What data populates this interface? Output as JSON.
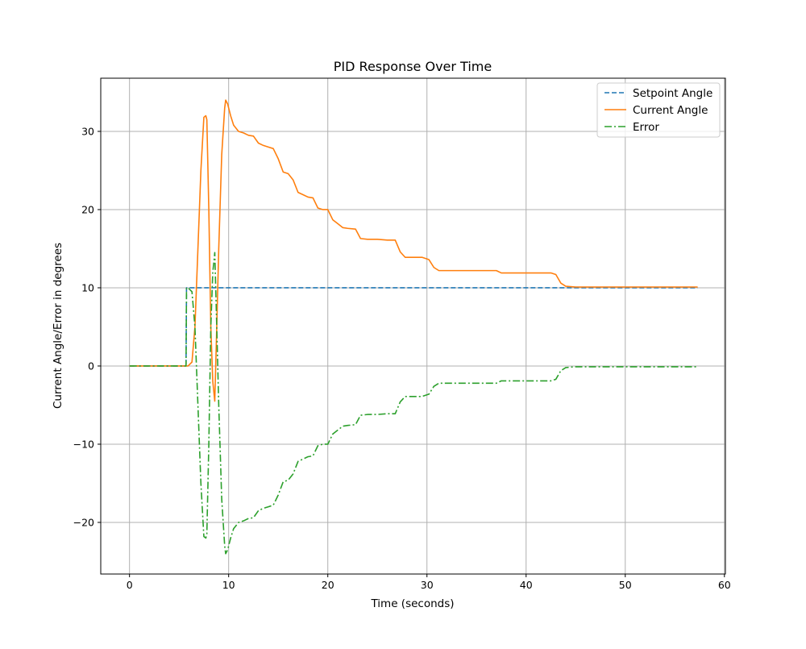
{
  "chart_data": {
    "type": "line",
    "title": "PID Response Over Time",
    "xlabel": "Time (seconds)",
    "ylabel": "Current Angle/Error in degrees",
    "xlim": [
      -2.9,
      60.1
    ],
    "ylim": [
      -26.6,
      36.8
    ],
    "x_ticks": [
      0,
      10,
      20,
      30,
      40,
      50,
      60
    ],
    "x_tick_labels": [
      "0",
      "10",
      "20",
      "30",
      "40",
      "50",
      "60"
    ],
    "y_ticks": [
      -20,
      -10,
      0,
      10,
      20,
      30
    ],
    "y_tick_labels": [
      "−20",
      "−10",
      "0",
      "10",
      "20",
      "30"
    ],
    "grid": true,
    "legend_position": "top-right",
    "series": [
      {
        "name": "Setpoint Angle",
        "color": "#1f77b4",
        "style": "dashed",
        "points": [
          [
            0,
            0
          ],
          [
            5.7,
            0
          ],
          [
            5.75,
            10
          ],
          [
            57.3,
            10
          ]
        ]
      },
      {
        "name": "Current Angle",
        "color": "#ff7f0e",
        "style": "solid",
        "points": [
          [
            0,
            0
          ],
          [
            5.9,
            0
          ],
          [
            6.3,
            0.5
          ],
          [
            6.6,
            5
          ],
          [
            6.9,
            15
          ],
          [
            7.2,
            25
          ],
          [
            7.5,
            31.8
          ],
          [
            7.7,
            32
          ],
          [
            7.8,
            31.5
          ],
          [
            8.0,
            20
          ],
          [
            8.2,
            5
          ],
          [
            8.4,
            -2
          ],
          [
            8.6,
            -4.5
          ],
          [
            8.8,
            5
          ],
          [
            9.0,
            15
          ],
          [
            9.3,
            27
          ],
          [
            9.6,
            33
          ],
          [
            9.7,
            34
          ],
          [
            9.9,
            33.5
          ],
          [
            10.2,
            32
          ],
          [
            10.5,
            30.8
          ],
          [
            11,
            30
          ],
          [
            11.5,
            29.8
          ],
          [
            12,
            29.5
          ],
          [
            12.5,
            29.4
          ],
          [
            13,
            28.5
          ],
          [
            13.5,
            28.2
          ],
          [
            14,
            28
          ],
          [
            14.5,
            27.8
          ],
          [
            15,
            26.5
          ],
          [
            15.5,
            24.8
          ],
          [
            16,
            24.6
          ],
          [
            16.5,
            23.8
          ],
          [
            17,
            22.2
          ],
          [
            17.5,
            21.9
          ],
          [
            18,
            21.6
          ],
          [
            18.5,
            21.5
          ],
          [
            19,
            20.2
          ],
          [
            19.5,
            20
          ],
          [
            20,
            20
          ],
          [
            20.5,
            18.7
          ],
          [
            21,
            18.2
          ],
          [
            21.5,
            17.7
          ],
          [
            22,
            17.6
          ],
          [
            22.8,
            17.5
          ],
          [
            23.3,
            16.3
          ],
          [
            24,
            16.2
          ],
          [
            25,
            16.2
          ],
          [
            26,
            16.1
          ],
          [
            26.8,
            16.1
          ],
          [
            27.3,
            14.6
          ],
          [
            27.8,
            13.9
          ],
          [
            28.5,
            13.9
          ],
          [
            29.5,
            13.9
          ],
          [
            30.2,
            13.6
          ],
          [
            30.7,
            12.6
          ],
          [
            31.2,
            12.2
          ],
          [
            32,
            12.2
          ],
          [
            34,
            12.2
          ],
          [
            35,
            12.2
          ],
          [
            37,
            12.2
          ],
          [
            37.5,
            11.9
          ],
          [
            39,
            11.9
          ],
          [
            41,
            11.9
          ],
          [
            42.5,
            11.9
          ],
          [
            43,
            11.7
          ],
          [
            43.5,
            10.6
          ],
          [
            44,
            10.2
          ],
          [
            45,
            10.1
          ],
          [
            50,
            10.1
          ],
          [
            55,
            10.1
          ],
          [
            57.3,
            10.1
          ]
        ]
      },
      {
        "name": "Error",
        "color": "#2ca02c",
        "style": "dashdot",
        "points": [
          [
            0,
            0
          ],
          [
            5.7,
            0
          ],
          [
            5.75,
            10
          ],
          [
            5.9,
            10
          ],
          [
            6.3,
            9.5
          ],
          [
            6.6,
            5
          ],
          [
            6.9,
            -5
          ],
          [
            7.2,
            -15
          ],
          [
            7.5,
            -21.8
          ],
          [
            7.7,
            -22
          ],
          [
            7.8,
            -21.5
          ],
          [
            8.0,
            -10
          ],
          [
            8.2,
            5
          ],
          [
            8.4,
            12
          ],
          [
            8.6,
            14.5
          ],
          [
            8.8,
            5
          ],
          [
            9.0,
            -5
          ],
          [
            9.3,
            -17
          ],
          [
            9.6,
            -23
          ],
          [
            9.7,
            -24
          ],
          [
            9.9,
            -23.5
          ],
          [
            10.2,
            -22
          ],
          [
            10.5,
            -20.8
          ],
          [
            11,
            -20
          ],
          [
            11.5,
            -19.8
          ],
          [
            12,
            -19.5
          ],
          [
            12.5,
            -19.4
          ],
          [
            13,
            -18.5
          ],
          [
            13.5,
            -18.2
          ],
          [
            14,
            -18
          ],
          [
            14.5,
            -17.8
          ],
          [
            15,
            -16.5
          ],
          [
            15.5,
            -14.8
          ],
          [
            16,
            -14.6
          ],
          [
            16.5,
            -13.8
          ],
          [
            17,
            -12.2
          ],
          [
            17.5,
            -11.9
          ],
          [
            18,
            -11.6
          ],
          [
            18.5,
            -11.5
          ],
          [
            19,
            -10.2
          ],
          [
            19.5,
            -10
          ],
          [
            20,
            -10
          ],
          [
            20.5,
            -8.7
          ],
          [
            21,
            -8.2
          ],
          [
            21.5,
            -7.7
          ],
          [
            22,
            -7.6
          ],
          [
            22.8,
            -7.5
          ],
          [
            23.3,
            -6.3
          ],
          [
            24,
            -6.2
          ],
          [
            25,
            -6.2
          ],
          [
            26,
            -6.1
          ],
          [
            26.8,
            -6.1
          ],
          [
            27.3,
            -4.6
          ],
          [
            27.8,
            -3.9
          ],
          [
            28.5,
            -3.9
          ],
          [
            29.5,
            -3.9
          ],
          [
            30.2,
            -3.6
          ],
          [
            30.7,
            -2.6
          ],
          [
            31.2,
            -2.2
          ],
          [
            32,
            -2.2
          ],
          [
            34,
            -2.2
          ],
          [
            35,
            -2.2
          ],
          [
            37,
            -2.2
          ],
          [
            37.5,
            -1.9
          ],
          [
            39,
            -1.9
          ],
          [
            41,
            -1.9
          ],
          [
            42.5,
            -1.9
          ],
          [
            43,
            -1.7
          ],
          [
            43.5,
            -0.6
          ],
          [
            44,
            -0.2
          ],
          [
            45,
            -0.1
          ],
          [
            50,
            -0.1
          ],
          [
            55,
            -0.1
          ],
          [
            57.3,
            -0.1
          ]
        ]
      }
    ]
  }
}
